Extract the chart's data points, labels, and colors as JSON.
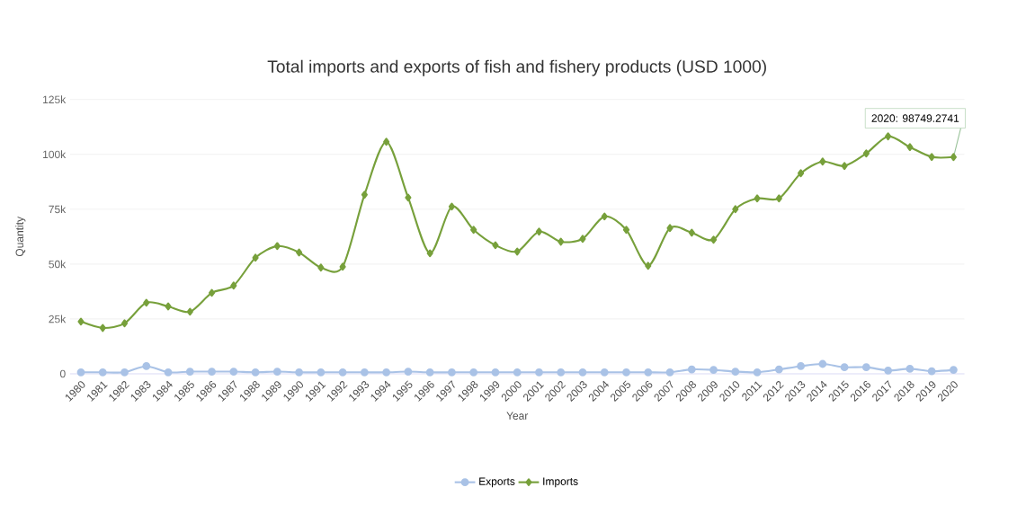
{
  "chart_data": {
    "type": "line",
    "title": "Total imports and exports of fish and fishery products (USD 1000)",
    "xlabel": "Year",
    "ylabel": "Quantity",
    "categories": [
      "1980",
      "1981",
      "1982",
      "1983",
      "1984",
      "1985",
      "1986",
      "1987",
      "1988",
      "1989",
      "1990",
      "1991",
      "1992",
      "1993",
      "1994",
      "1995",
      "1996",
      "1997",
      "1998",
      "1999",
      "2000",
      "2001",
      "2002",
      "2003",
      "2004",
      "2005",
      "2006",
      "2007",
      "2008",
      "2009",
      "2010",
      "2011",
      "2012",
      "2013",
      "2014",
      "2015",
      "2016",
      "2017",
      "2018",
      "2019",
      "2020"
    ],
    "series": [
      {
        "name": "Exports",
        "color": "#a9c2e6",
        "marker": "circle",
        "values": [
          700,
          700,
          700,
          3500,
          700,
          1000,
          1000,
          1000,
          700,
          1000,
          700,
          700,
          700,
          700,
          700,
          1000,
          700,
          700,
          700,
          700,
          700,
          700,
          700,
          700,
          700,
          700,
          700,
          700,
          2000,
          1800,
          1000,
          700,
          2000,
          3500,
          4500,
          3000,
          3000,
          1500,
          2300,
          1200,
          1800
        ]
      },
      {
        "name": "Imports",
        "color": "#77a03b",
        "marker": "diamond",
        "values": [
          23800,
          20900,
          23000,
          32400,
          30700,
          28300,
          36900,
          40200,
          52900,
          58200,
          55300,
          48400,
          48800,
          81600,
          105700,
          80300,
          54900,
          76200,
          65600,
          58600,
          55700,
          64800,
          60200,
          61500,
          71700,
          65600,
          49200,
          66400,
          64300,
          61100,
          75000,
          79900,
          79900,
          91400,
          96700,
          94700,
          100400,
          108200,
          103300,
          98800,
          98749.2741
        ]
      }
    ],
    "ylim": [
      0,
      125000
    ],
    "yticks": [
      {
        "value": 0,
        "label": "0"
      },
      {
        "value": 25000,
        "label": "25k"
      },
      {
        "value": 50000,
        "label": "50k"
      },
      {
        "value": 75000,
        "label": "75k"
      },
      {
        "value": 100000,
        "label": "100k"
      },
      {
        "value": 125000,
        "label": "125k"
      }
    ],
    "grid": "y",
    "legend": "bottom",
    "line_style": "solid",
    "annotations": [
      {
        "text": "2020: 98749.2741",
        "x": "2020",
        "y": 98749.2741
      }
    ]
  }
}
